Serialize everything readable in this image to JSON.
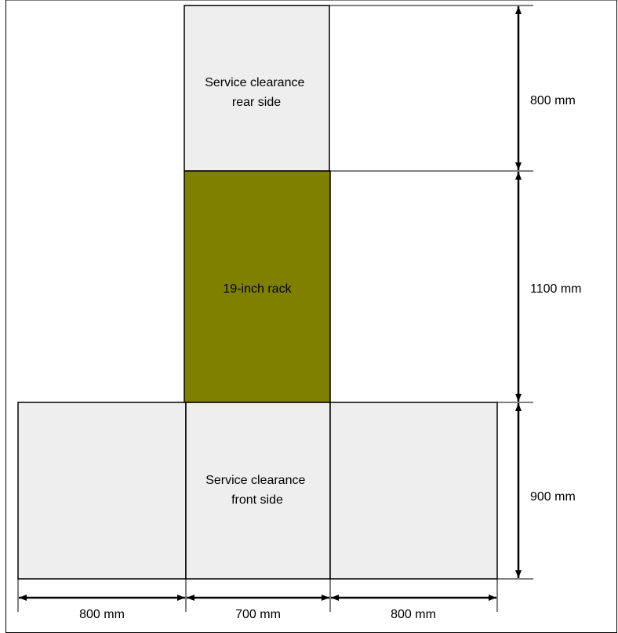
{
  "colors": {
    "clearance_fill": "#eeeeee",
    "rack_fill": "#808000",
    "line": "#000000"
  },
  "areas": {
    "rear_clearance": {
      "line1": "Service clearance",
      "line2": "rear side"
    },
    "rack": {
      "label": "19-inch rack"
    },
    "front_clearance": {
      "line1": "Service clearance",
      "line2": "front side"
    }
  },
  "dimensions": {
    "rear_depth": "800 mm",
    "rack_depth": "1100 mm",
    "front_depth": "900 mm",
    "left_width": "800 mm",
    "rack_width": "700 mm",
    "right_width": "800 mm"
  }
}
